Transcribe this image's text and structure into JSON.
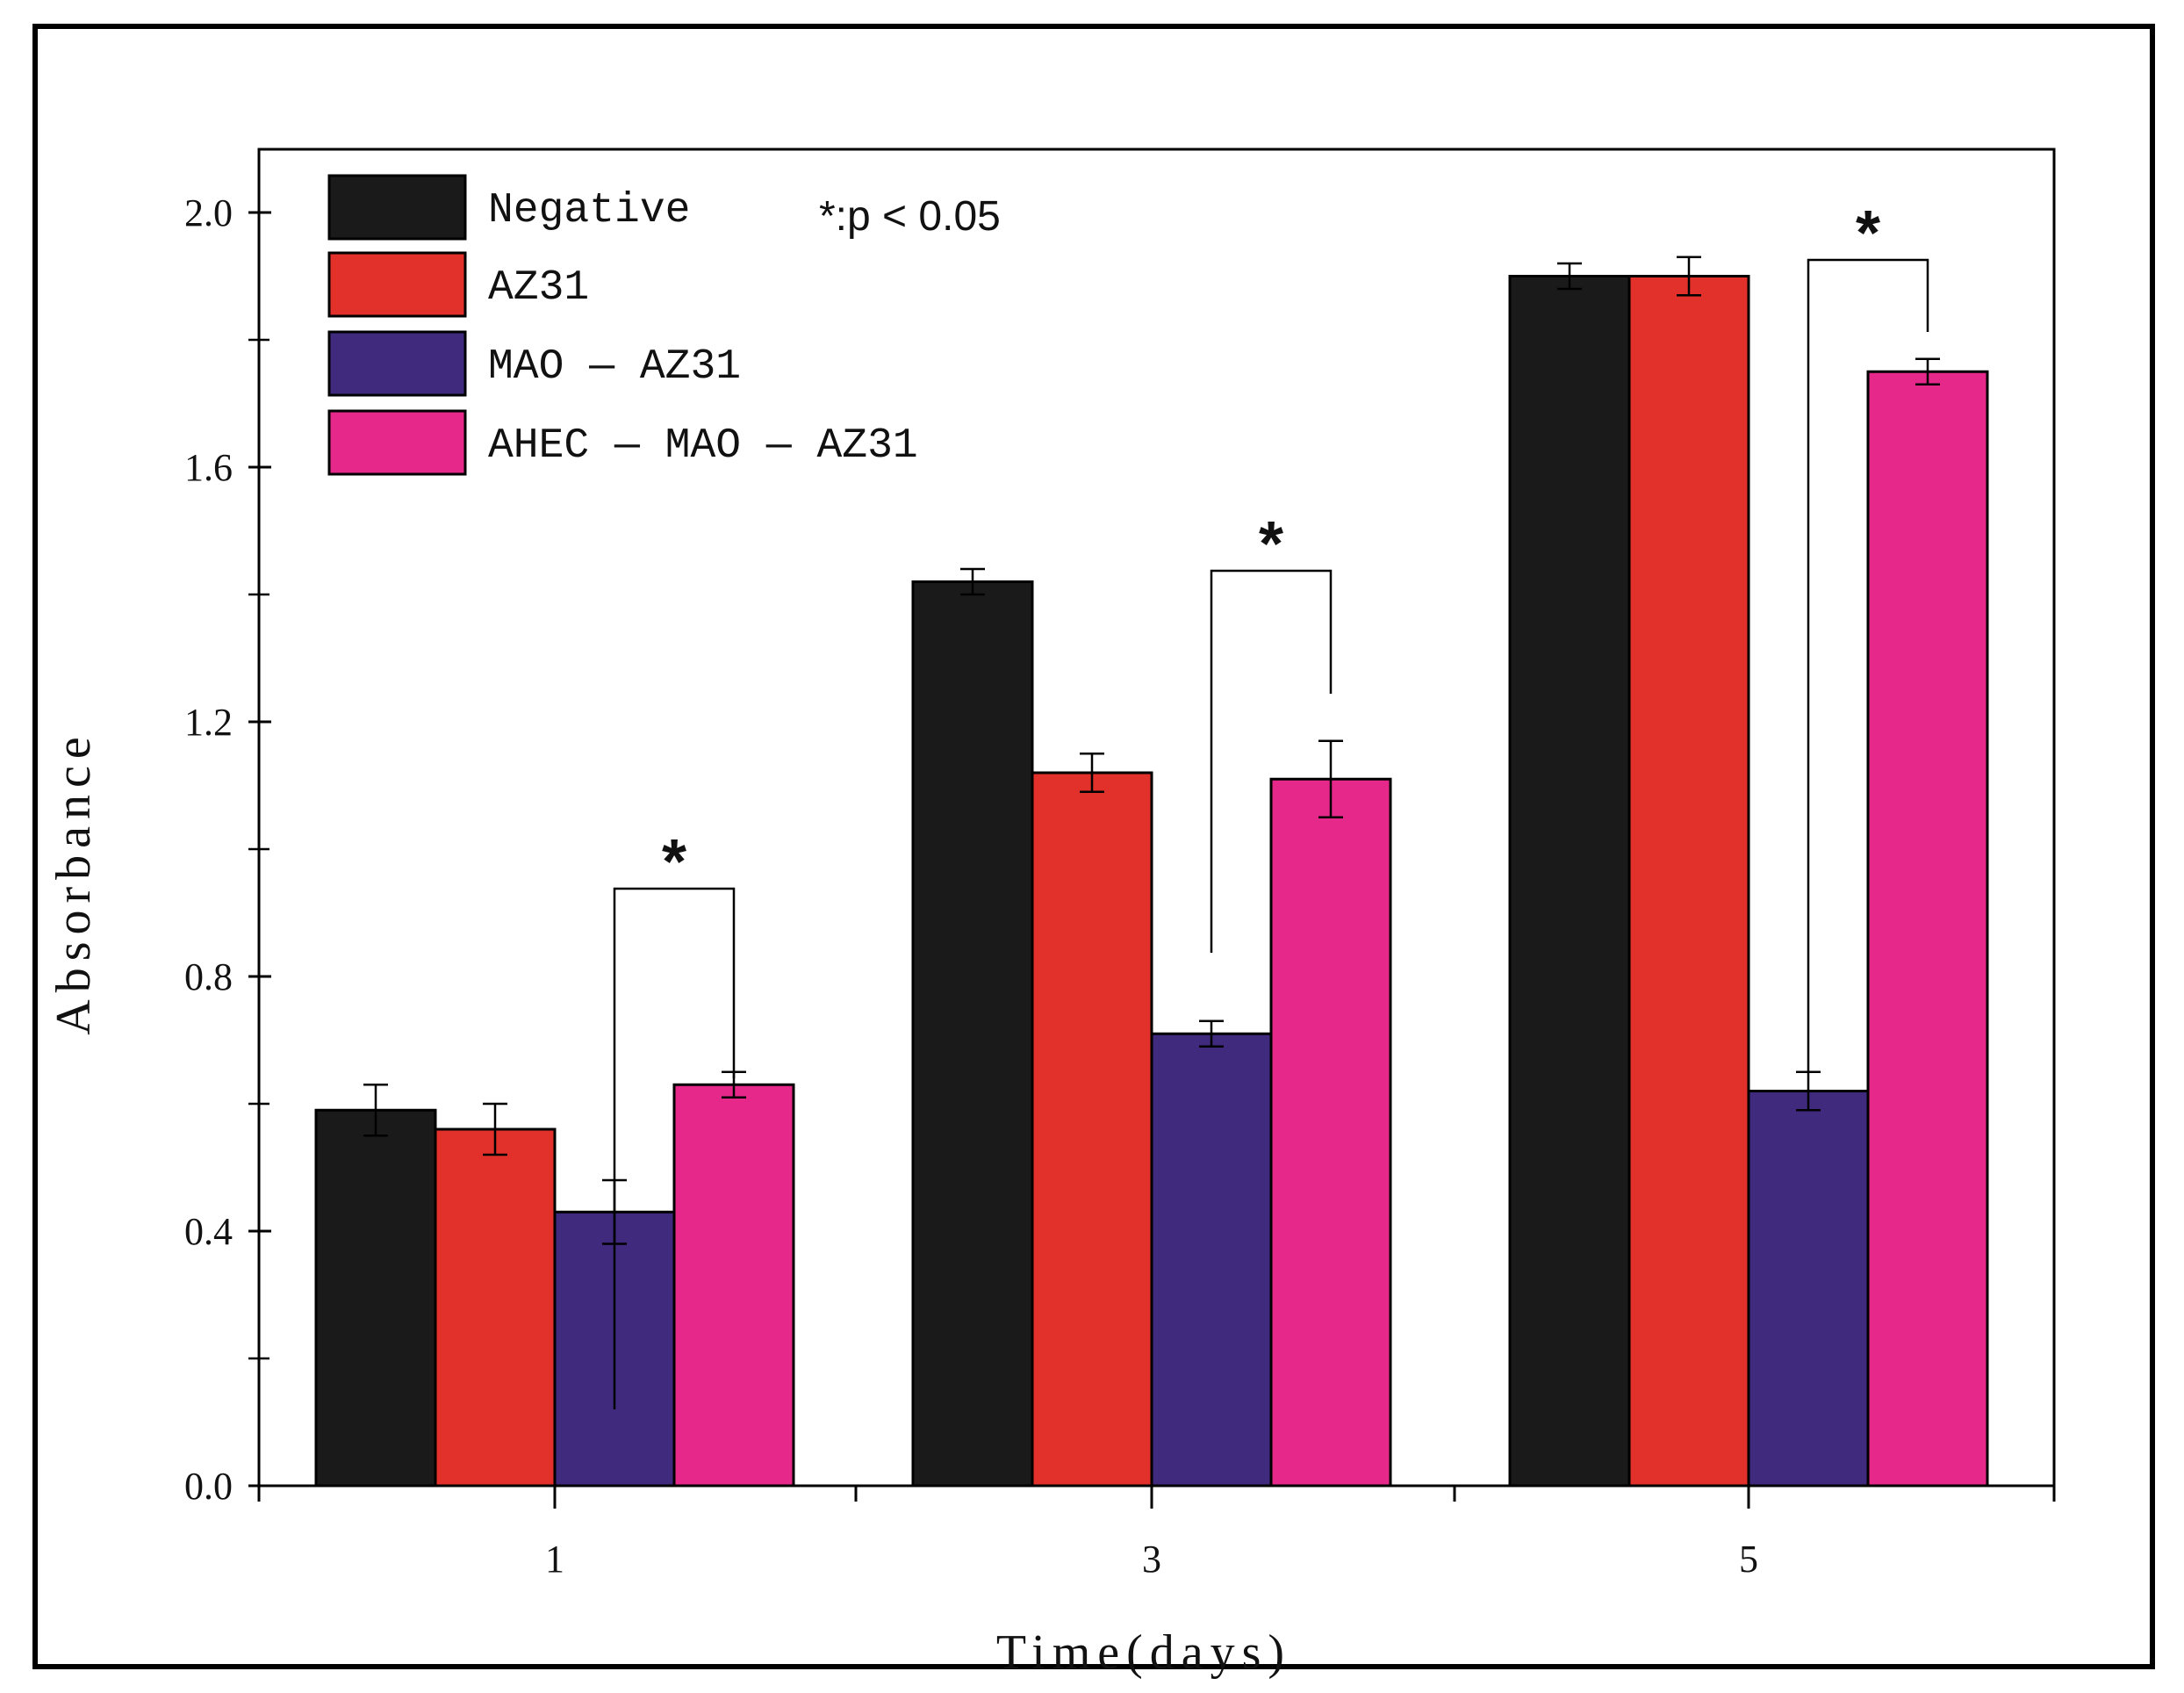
{
  "chart_data": {
    "type": "bar",
    "title": "",
    "xlabel": "Time(days)",
    "ylabel": "Absorbance",
    "ylim": [
      0,
      2.2
    ],
    "yticks": [
      0.0,
      0.4,
      0.8,
      1.2,
      1.6,
      2.0
    ],
    "ytick_labels": [
      "0.0",
      "0.4",
      "0.8",
      "1.2",
      "1.6",
      "2.0"
    ],
    "categories": [
      "1",
      "3",
      "5"
    ],
    "series": [
      {
        "name": "Negative",
        "legend_label": "Negative",
        "color": "#1a1a1a",
        "values": [
          0.59,
          1.42,
          1.9
        ],
        "errors": [
          0.04,
          0.02,
          0.02
        ]
      },
      {
        "name": "AZ31",
        "legend_label": "AZ31",
        "color": "#e2302a",
        "values": [
          0.56,
          1.12,
          1.9
        ],
        "errors": [
          0.04,
          0.03,
          0.03
        ]
      },
      {
        "name": "MAO-AZ31",
        "legend_label": "MAO — AZ31",
        "color": "#3f2a7e",
        "values": [
          0.43,
          0.71,
          0.62
        ],
        "errors": [
          0.05,
          0.02,
          0.03
        ]
      },
      {
        "name": "AHEC-MAO-AZ31",
        "legend_label": "AHEC — MAO — AZ31",
        "color": "#e5288a",
        "values": [
          0.63,
          1.11,
          1.75
        ],
        "errors": [
          0.02,
          0.06,
          0.02
        ]
      }
    ],
    "legend_position": "top-left",
    "annotation": {
      "text": "*:p < 0.05"
    },
    "significance": [
      {
        "category": "1",
        "between": [
          "MAO-AZ31",
          "AHEC-MAO-AZ31"
        ],
        "marker": "*"
      },
      {
        "category": "3",
        "between": [
          "MAO-AZ31",
          "AHEC-MAO-AZ31"
        ],
        "marker": "*"
      },
      {
        "category": "5",
        "between": [
          "MAO-AZ31",
          "AHEC-MAO-AZ31"
        ],
        "marker": "*"
      }
    ]
  }
}
